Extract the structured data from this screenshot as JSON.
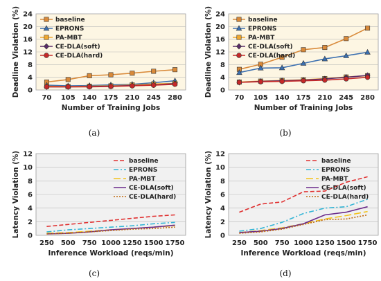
{
  "figure": {
    "captions": [
      "(a)",
      "(b)",
      "(c)",
      "(d)"
    ]
  },
  "chart_data": [
    {
      "id": "a",
      "type": "line",
      "caption": "(a)",
      "xlabel": "Number of Training Jobs",
      "ylabel": "Deadline Violation (%)",
      "categories": [
        "70",
        "105",
        "140",
        "175",
        "210",
        "245",
        "280"
      ],
      "ylim": [
        0,
        24
      ],
      "yticks": [
        0,
        4,
        8,
        12,
        16,
        20,
        24
      ],
      "grid": true,
      "background": "#fdf6e3",
      "legend_position": "top-left",
      "series": [
        {
          "name": "baseline",
          "values": [
            2.5,
            3.3,
            4.5,
            4.8,
            5.3,
            5.9,
            6.4
          ],
          "color": "#d98a3a",
          "marker": "square",
          "dash": "solid"
        },
        {
          "name": "EPRONS",
          "values": [
            1.5,
            1.3,
            1.4,
            1.6,
            1.8,
            2.3,
            2.9
          ],
          "color": "#3a6fb0",
          "marker": "triangle",
          "dash": "solid"
        },
        {
          "name": "PA-MBT",
          "values": [
            1.2,
            1.1,
            1.2,
            1.3,
            1.6,
            1.9,
            2.1
          ],
          "color": "#f0a830",
          "marker": "square",
          "dash": "solid"
        },
        {
          "name": "CE-DLA(soft)",
          "values": [
            1.0,
            1.0,
            1.1,
            1.2,
            1.4,
            1.6,
            2.0
          ],
          "color": "#5a2a6a",
          "marker": "diamond",
          "dash": "solid"
        },
        {
          "name": "CE-DLA(hard)",
          "values": [
            1.0,
            1.0,
            1.0,
            1.1,
            1.3,
            1.5,
            1.8
          ],
          "color": "#c62828",
          "marker": "circle",
          "dash": "solid"
        }
      ]
    },
    {
      "id": "b",
      "type": "line",
      "caption": "(b)",
      "xlabel": "Number of Training Jobs",
      "ylabel": "Deadline Violation (%)",
      "categories": [
        "70",
        "105",
        "140",
        "175",
        "210",
        "245",
        "280"
      ],
      "ylim": [
        0,
        24
      ],
      "yticks": [
        0,
        4,
        8,
        12,
        16,
        20,
        24
      ],
      "grid": true,
      "background": "#fdf6e3",
      "legend_position": "top-left",
      "series": [
        {
          "name": "baseline",
          "values": [
            6.5,
            8.1,
            10.3,
            12.7,
            13.4,
            16.2,
            19.5
          ],
          "color": "#d98a3a",
          "marker": "square",
          "dash": "solid"
        },
        {
          "name": "EPRONS",
          "values": [
            5.5,
            6.9,
            7.0,
            8.4,
            9.8,
            10.8,
            11.9
          ],
          "color": "#3a6fb0",
          "marker": "triangle",
          "dash": "solid"
        },
        {
          "name": "PA-MBT",
          "values": [
            2.5,
            2.8,
            3.0,
            3.2,
            3.6,
            4.1,
            4.5
          ],
          "color": "#f0a830",
          "marker": "square",
          "dash": "solid"
        },
        {
          "name": "CE-DLA(soft)",
          "values": [
            2.4,
            2.7,
            2.9,
            3.1,
            3.5,
            4.0,
            4.6
          ],
          "color": "#5a2a6a",
          "marker": "diamond",
          "dash": "solid"
        },
        {
          "name": "CE-DLA(hard)",
          "values": [
            2.4,
            2.6,
            2.7,
            2.9,
            3.1,
            3.5,
            4.0
          ],
          "color": "#c62828",
          "marker": "circle",
          "dash": "solid"
        }
      ]
    },
    {
      "id": "c",
      "type": "line",
      "caption": "(c)",
      "xlabel": "Inference Workload (reqs/min)",
      "ylabel": "Latency Violation (%)",
      "categories": [
        "250",
        "500",
        "750",
        "1000",
        "1250",
        "1500",
        "1750"
      ],
      "ylim": [
        0,
        12
      ],
      "yticks": [
        0,
        2,
        4,
        6,
        8,
        10,
        12
      ],
      "grid": true,
      "background": "#f1f1f1",
      "legend_position": "top-right",
      "series": [
        {
          "name": "baseline",
          "values": [
            1.3,
            1.6,
            1.9,
            2.2,
            2.5,
            2.8,
            3.0
          ],
          "color": "#e03030",
          "marker": "none",
          "dash": "dashed"
        },
        {
          "name": "EPRONS",
          "values": [
            0.5,
            0.8,
            1.0,
            1.2,
            1.4,
            1.7,
            1.9
          ],
          "color": "#33b5d6",
          "marker": "none",
          "dash": "dashdot"
        },
        {
          "name": "PA-MBT",
          "values": [
            0.3,
            0.4,
            0.6,
            0.8,
            1.0,
            1.2,
            1.4
          ],
          "color": "#f2c21a",
          "marker": "none",
          "dash": "longdash"
        },
        {
          "name": "CE-DLA(soft)",
          "values": [
            0.2,
            0.3,
            0.5,
            0.8,
            1.0,
            1.2,
            1.5
          ],
          "color": "#6a2a8a",
          "marker": "none",
          "dash": "solid"
        },
        {
          "name": "CE-DLA(hard)",
          "values": [
            0.2,
            0.3,
            0.5,
            0.7,
            0.9,
            1.0,
            1.2
          ],
          "color": "#c06a10",
          "marker": "none",
          "dash": "dotted"
        }
      ]
    },
    {
      "id": "d",
      "type": "line",
      "caption": "(d)",
      "xlabel": "Inference Workload (reqs/min)",
      "ylabel": "Latency Violation (%)",
      "categories": [
        "250",
        "500",
        "750",
        "1000",
        "1250",
        "1500",
        "1750"
      ],
      "ylim": [
        0,
        12
      ],
      "yticks": [
        0,
        2,
        4,
        6,
        8,
        10,
        12
      ],
      "grid": true,
      "background": "#f1f1f1",
      "legend_position": "top-right",
      "series": [
        {
          "name": "baseline",
          "values": [
            3.4,
            4.6,
            4.9,
            6.4,
            6.5,
            7.8,
            8.6
          ],
          "color": "#e03030",
          "marker": "none",
          "dash": "dashed"
        },
        {
          "name": "EPRONS",
          "values": [
            0.6,
            1.0,
            1.9,
            3.2,
            4.0,
            4.2,
            5.3
          ],
          "color": "#33b5d6",
          "marker": "none",
          "dash": "dashdot"
        },
        {
          "name": "PA-MBT",
          "values": [
            0.4,
            0.7,
            1.1,
            1.7,
            2.4,
            2.9,
            3.5
          ],
          "color": "#f2c21a",
          "marker": "none",
          "dash": "longdash"
        },
        {
          "name": "CE-DLA(soft)",
          "values": [
            0.4,
            0.6,
            1.0,
            1.7,
            3.0,
            3.4,
            4.2
          ],
          "color": "#6a2a8a",
          "marker": "none",
          "dash": "solid"
        },
        {
          "name": "CE-DLA(hard)",
          "values": [
            0.3,
            0.5,
            0.9,
            1.6,
            2.3,
            2.4,
            3.0
          ],
          "color": "#c06a10",
          "marker": "none",
          "dash": "dotted"
        }
      ]
    }
  ]
}
